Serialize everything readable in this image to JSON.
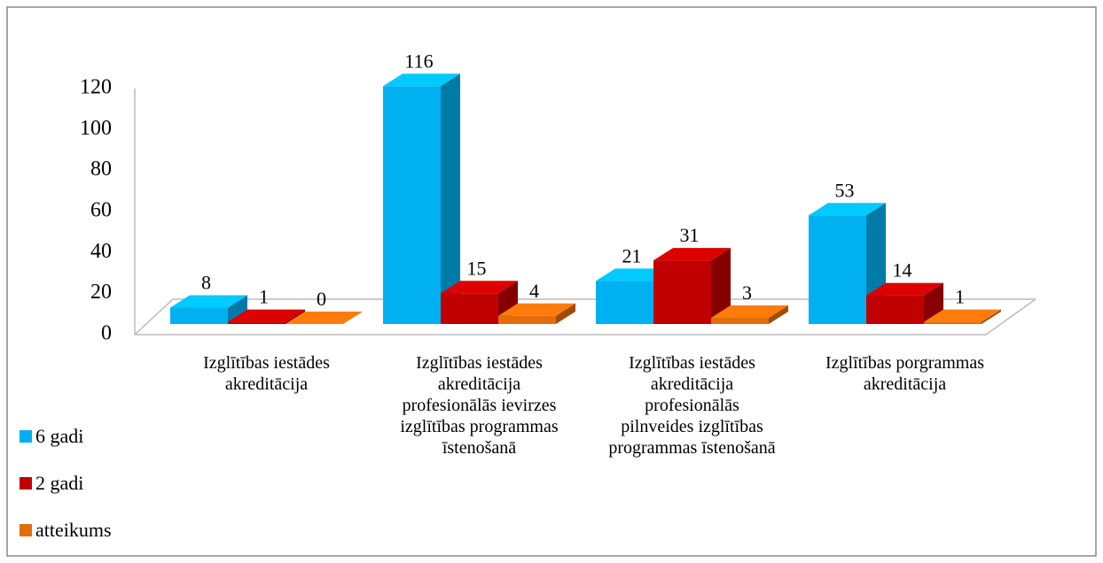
{
  "chart_data": {
    "type": "bar3d",
    "categories": [
      "Izglītības iestādes akreditācija",
      "Izglītības iestādes akreditācija profesionālās ievirzes izglītības programmas īstenošanā",
      "Izglītības iestādes akreditācija profesionālās pilnveides izglītības programmas īstenošanā",
      "Izglītības porgrammas akreditācija"
    ],
    "series": [
      {
        "name": "6 gadi",
        "color": "#00b0f0",
        "values": [
          8,
          116,
          21,
          53
        ]
      },
      {
        "name": "2 gadi",
        "color": "#c00000",
        "values": [
          1,
          15,
          31,
          14
        ]
      },
      {
        "name": "atteikums",
        "color": "#e46c0a",
        "values": [
          0,
          4,
          3,
          1
        ]
      }
    ],
    "ylim": [
      0,
      120
    ],
    "yticks": [
      0,
      20,
      40,
      60,
      80,
      100,
      120
    ],
    "legend": "left"
  }
}
